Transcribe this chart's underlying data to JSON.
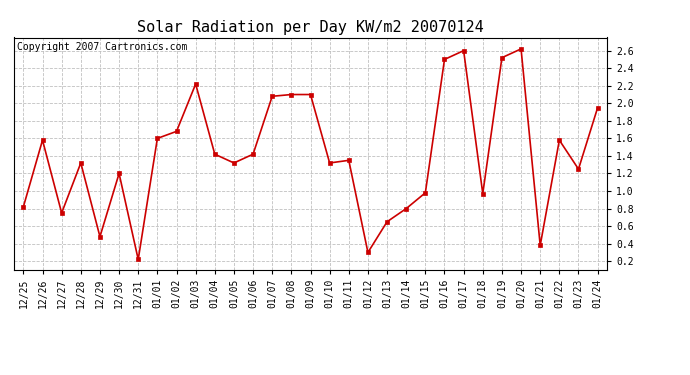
{
  "title": "Solar Radiation per Day KW/m2 20070124",
  "copyright": "Copyright 2007 Cartronics.com",
  "labels": [
    "12/25",
    "12/26",
    "12/27",
    "12/28",
    "12/29",
    "12/30",
    "12/31",
    "01/01",
    "01/02",
    "01/03",
    "01/04",
    "01/05",
    "01/06",
    "01/07",
    "01/08",
    "01/09",
    "01/10",
    "01/11",
    "01/12",
    "01/13",
    "01/14",
    "01/15",
    "01/16",
    "01/17",
    "01/18",
    "01/19",
    "01/20",
    "01/21",
    "01/22",
    "01/23",
    "01/24"
  ],
  "values": [
    0.82,
    1.58,
    0.75,
    1.32,
    0.48,
    1.2,
    0.22,
    1.6,
    1.68,
    2.22,
    1.42,
    1.32,
    1.42,
    2.08,
    2.1,
    2.1,
    1.32,
    1.35,
    0.3,
    0.65,
    0.8,
    0.98,
    2.5,
    2.6,
    0.97,
    2.52,
    2.62,
    0.38,
    1.58,
    1.25,
    1.95
  ],
  "line_color": "#cc0000",
  "marker": "s",
  "marker_size": 3,
  "bg_color": "#ffffff",
  "plot_bg_color": "#ffffff",
  "grid_color": "#c0c0c0",
  "ylim": [
    0.1,
    2.75
  ],
  "yticks": [
    0.2,
    0.4,
    0.6,
    0.8,
    1.0,
    1.2,
    1.4,
    1.6,
    1.8,
    2.0,
    2.2,
    2.4,
    2.6
  ],
  "title_fontsize": 11,
  "copyright_fontsize": 7,
  "tick_fontsize": 7,
  "ytick_fontsize": 7
}
